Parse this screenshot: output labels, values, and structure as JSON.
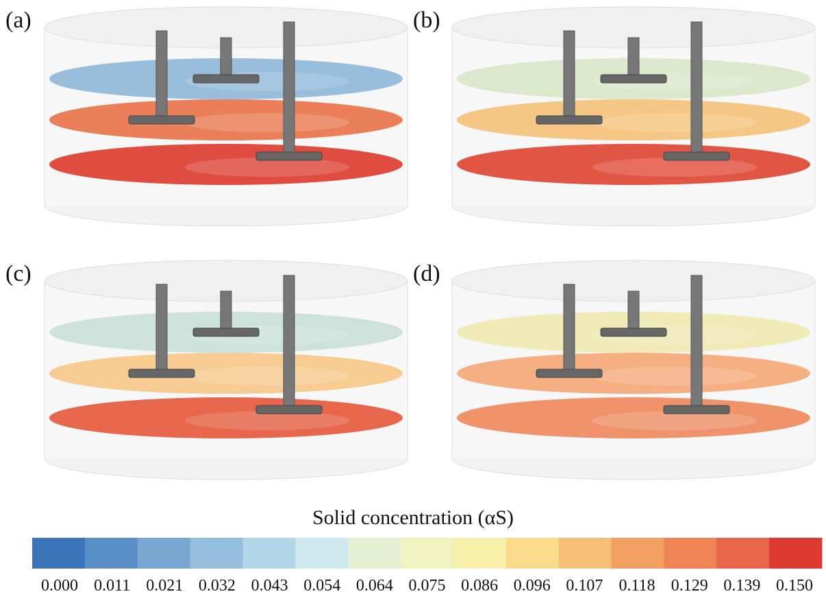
{
  "panels": [
    {
      "label": "(a)"
    },
    {
      "label": "(b)"
    },
    {
      "label": "(c)"
    },
    {
      "label": "(d)"
    }
  ],
  "colorbar": {
    "title": "Solid concentration (αS)",
    "colors": [
      "#3b74b8",
      "#5a8ec6",
      "#7aa7d2",
      "#96bfdd",
      "#b3d5e8",
      "#d0e9f0",
      "#e4efd4",
      "#f0f3c0",
      "#f8f0a8",
      "#f9db8c",
      "#f6bf78",
      "#f29f63",
      "#ef8456",
      "#e8664a",
      "#dc3a30"
    ],
    "ticks": [
      "0.000",
      "0.011",
      "0.021",
      "0.032",
      "0.043",
      "0.054",
      "0.064",
      "0.075",
      "0.086",
      "0.096",
      "0.107",
      "0.118",
      "0.129",
      "0.139",
      "0.150"
    ]
  }
}
